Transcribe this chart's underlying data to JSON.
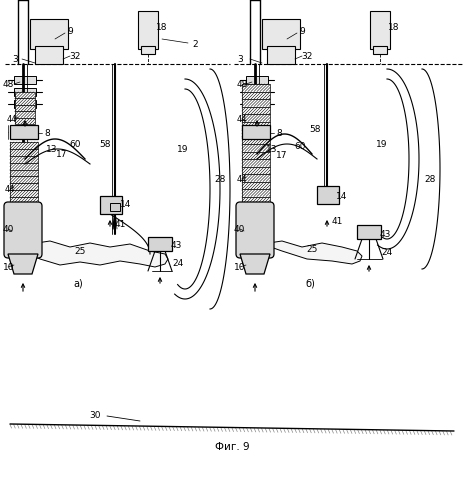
{
  "fig_label": "Фиг. 9",
  "bg_color": "#ffffff",
  "line_color": "#000000",
  "figure_size": [
    4.64,
    4.99
  ],
  "dpi": 100,
  "fig_num": "Фиг. 9"
}
